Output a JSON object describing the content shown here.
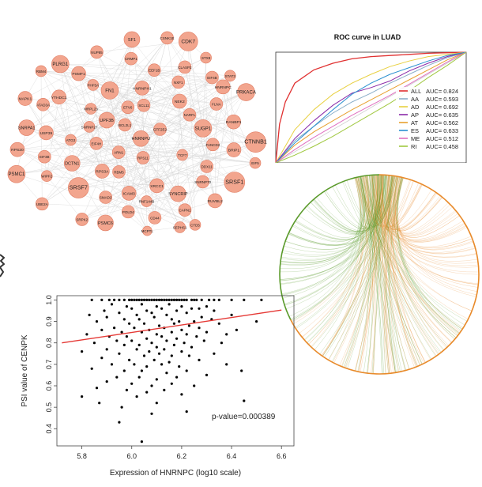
{
  "colors": {
    "node_fill": "#f2a58e",
    "node_stroke": "#e07a60",
    "network_edge": "#d8d8d8",
    "fit_line": "#e53935",
    "point": "#000000",
    "chord_green": "#5a9a2a",
    "chord_orange": "#e88a2a"
  },
  "network": {
    "nodes": [
      {
        "label": "MCPTL",
        "r": 6
      },
      {
        "label": "RBM4",
        "r": 7
      },
      {
        "label": "EIF5",
        "r": 7
      },
      {
        "label": "ARN1",
        "r": 8
      },
      {
        "label": "RANBP1",
        "r": 9
      },
      {
        "label": "EIF3B",
        "r": 8
      },
      {
        "label": "EEF1B",
        "r": 8
      },
      {
        "label": "RPS20",
        "r": 9
      },
      {
        "label": "SRSF7",
        "r": 13
      },
      {
        "label": "SRSF1",
        "r": 13
      },
      {
        "label": "NXF1",
        "r": 8
      },
      {
        "label": "CTD5",
        "r": 7
      },
      {
        "label": "SNRNP70",
        "r": 8
      },
      {
        "label": "EIF4H",
        "r": 8
      },
      {
        "label": "SCL11",
        "r": 8
      },
      {
        "label": "POLD4",
        "r": 8
      },
      {
        "label": "SNRPA1",
        "r": 10
      },
      {
        "label": "RBM5",
        "r": 8
      },
      {
        "label": "EIF4B",
        "r": 8
      },
      {
        "label": "UBE2A",
        "r": 8
      },
      {
        "label": "YTHDC1",
        "r": 9
      },
      {
        "label": "SYNCRIP",
        "r": 10
      },
      {
        "label": "HNRNPU",
        "r": 10
      },
      {
        "label": "NUP85",
        "r": 8
      },
      {
        "label": "SF1",
        "r": 10
      },
      {
        "label": "PLRG1",
        "r": 11
      },
      {
        "label": "USP39",
        "r": 9
      },
      {
        "label": "CSNK1E",
        "r": 8
      },
      {
        "label": "SRPK2",
        "r": 8
      },
      {
        "label": "XRCC1",
        "r": 9
      },
      {
        "label": "PSMC6",
        "r": 10
      },
      {
        "label": "HNRNPH1",
        "r": 9
      },
      {
        "label": "DCTN1",
        "r": 10
      },
      {
        "label": "RPS3A",
        "r": 9
      },
      {
        "label": "NEK2",
        "r": 9
      },
      {
        "label": "UPF3B",
        "r": 10
      },
      {
        "label": "MAPK1",
        "r": 9
      },
      {
        "label": "PSMC1",
        "r": 11
      },
      {
        "label": "CDK7",
        "r": 12
      },
      {
        "label": "GTF2E2",
        "r": 8
      },
      {
        "label": "SUGP1",
        "r": 11
      },
      {
        "label": "PRKACA",
        "r": 11
      },
      {
        "label": "PSMF1",
        "r": 9
      },
      {
        "label": "RUVBL2",
        "r": 9
      },
      {
        "label": "DDX11",
        "r": 8
      },
      {
        "label": "FN1",
        "r": 11
      },
      {
        "label": "ICAM3",
        "r": 9
      },
      {
        "label": "CTNNB1",
        "r": 13
      },
      {
        "label": "ATAD3A",
        "r": 8
      },
      {
        "label": "FANCD2",
        "r": 8
      },
      {
        "label": "BRIP1",
        "r": 9
      },
      {
        "label": "CAPN1",
        "r": 8
      },
      {
        "label": "FLNA",
        "r": 8
      },
      {
        "label": "SEPHS1",
        "r": 7
      },
      {
        "label": "RPS11",
        "r": 8
      },
      {
        "label": "CLASP2",
        "r": 8
      },
      {
        "label": "WIPF2",
        "r": 7
      },
      {
        "label": "ATG3",
        "r": 7
      },
      {
        "label": "SMAD2",
        "r": 8
      },
      {
        "label": "ETV6",
        "r": 8
      },
      {
        "label": "MRPL23",
        "r": 7
      },
      {
        "label": "RNF144B",
        "r": 7
      },
      {
        "label": "STX8",
        "r": 7
      },
      {
        "label": "CD44",
        "r": 8
      },
      {
        "label": "NARFL",
        "r": 8
      },
      {
        "label": "CRMP1",
        "r": 8
      },
      {
        "label": "TCF7",
        "r": 7
      },
      {
        "label": "BCL2L1",
        "r": 8
      },
      {
        "label": "STAT3",
        "r": 7
      },
      {
        "label": "HNRNPC",
        "r": 9
      },
      {
        "label": "SNRNP27",
        "r": 7
      },
      {
        "label": "PHF5A",
        "r": 7
      }
    ]
  },
  "roc": {
    "title": "ROC curve in LUAD",
    "legend": [
      {
        "label": "ALL",
        "auc": "AUC= 0.824",
        "color": "#e03030"
      },
      {
        "label": "AA",
        "auc": "AUC= 0.593",
        "color": "#8aaec8"
      },
      {
        "label": "AD",
        "auc": "AUC= 0.692",
        "color": "#e8d040"
      },
      {
        "label": "AP",
        "auc": "AUC= 0.635",
        "color": "#8a2aa8"
      },
      {
        "label": "AT",
        "auc": "AUC= 0.562",
        "color": "#e8a030"
      },
      {
        "label": "ES",
        "auc": "AUC= 0.633",
        "color": "#2a90d0"
      },
      {
        "label": "ME",
        "auc": "AUC= 0.512",
        "color": "#e070c0"
      },
      {
        "label": "RI",
        "auc": "AUC= 0.458",
        "color": "#a0c840"
      }
    ]
  },
  "scatter": {
    "xlabel": "Expression of HNRNPC (log10 scale)",
    "ylabel": "PSI value of CENPK",
    "annotation": "p-value=0.000389",
    "xticks": [
      "5.8",
      "6.0",
      "6.2",
      "6.4",
      "6.6"
    ],
    "yticks": [
      "0.4",
      "0.5",
      "0.6",
      "0.7",
      "0.8",
      "0.9",
      "1.0"
    ]
  },
  "chart_data": [
    {
      "type": "line",
      "title": "ROC curve in LUAD",
      "xlabel": "",
      "ylabel": "",
      "xlim": [
        0,
        1
      ],
      "ylim": [
        0,
        1
      ],
      "series": [
        {
          "name": "ALL",
          "auc": 0.824,
          "x": [
            0,
            0.02,
            0.05,
            0.1,
            0.2,
            0.3,
            0.4,
            0.5,
            0.6,
            0.7,
            0.8,
            0.9,
            1
          ],
          "y": [
            0,
            0.35,
            0.55,
            0.72,
            0.84,
            0.9,
            0.94,
            0.96,
            0.97,
            0.98,
            0.99,
            0.995,
            1
          ]
        },
        {
          "name": "AA",
          "auc": 0.593,
          "x": [
            0,
            0.1,
            0.2,
            0.3,
            0.4,
            0.5,
            0.6,
            0.7,
            0.8,
            0.9,
            1
          ],
          "y": [
            0,
            0.2,
            0.33,
            0.45,
            0.55,
            0.63,
            0.72,
            0.8,
            0.88,
            0.95,
            1
          ]
        },
        {
          "name": "AD",
          "auc": 0.692,
          "x": [
            0,
            0.1,
            0.2,
            0.3,
            0.4,
            0.5,
            0.6,
            0.7,
            0.8,
            0.9,
            1
          ],
          "y": [
            0,
            0.3,
            0.48,
            0.62,
            0.72,
            0.8,
            0.87,
            0.92,
            0.96,
            0.98,
            1
          ]
        },
        {
          "name": "AP",
          "auc": 0.635,
          "x": [
            0,
            0.1,
            0.2,
            0.3,
            0.4,
            0.5,
            0.6,
            0.7,
            0.8,
            0.9,
            1
          ],
          "y": [
            0,
            0.22,
            0.38,
            0.52,
            0.63,
            0.68,
            0.74,
            0.83,
            0.9,
            0.96,
            1
          ]
        },
        {
          "name": "AT",
          "auc": 0.562,
          "x": [
            0,
            0.1,
            0.2,
            0.3,
            0.4,
            0.5,
            0.6,
            0.7,
            0.8,
            0.9,
            1
          ],
          "y": [
            0,
            0.16,
            0.28,
            0.38,
            0.48,
            0.57,
            0.66,
            0.75,
            0.84,
            0.93,
            1
          ]
        },
        {
          "name": "ES",
          "auc": 0.633,
          "x": [
            0,
            0.1,
            0.2,
            0.3,
            0.4,
            0.5,
            0.6,
            0.7,
            0.8,
            0.9,
            1
          ],
          "y": [
            0,
            0.18,
            0.33,
            0.48,
            0.62,
            0.72,
            0.8,
            0.86,
            0.92,
            0.97,
            1
          ]
        },
        {
          "name": "ME",
          "auc": 0.512,
          "x": [
            0,
            0.1,
            0.2,
            0.3,
            0.4,
            0.5,
            0.6,
            0.7,
            0.8,
            0.9,
            1
          ],
          "y": [
            0,
            0.12,
            0.23,
            0.33,
            0.43,
            0.52,
            0.61,
            0.71,
            0.81,
            0.91,
            1
          ]
        },
        {
          "name": "RI",
          "auc": 0.458,
          "x": [
            0,
            0.1,
            0.2,
            0.3,
            0.4,
            0.5,
            0.6,
            0.7,
            0.8,
            0.9,
            1
          ],
          "y": [
            0,
            0.07,
            0.15,
            0.24,
            0.34,
            0.44,
            0.54,
            0.65,
            0.77,
            0.88,
            1
          ]
        }
      ]
    },
    {
      "type": "scatter",
      "title": "",
      "xlabel": "Expression of HNRNPC (log10 scale)",
      "ylabel": "PSI value of CENPK",
      "xlim": [
        5.7,
        6.65
      ],
      "ylim": [
        0.32,
        1.02
      ],
      "annotation": "p-value=0.000389",
      "fit_line": {
        "x": [
          5.72,
          6.6
        ],
        "y": [
          0.8,
          0.953
        ]
      },
      "points": [
        [
          5.84,
          1.0
        ],
        [
          5.88,
          1.0
        ],
        [
          5.91,
          1.0
        ],
        [
          5.93,
          1.0
        ],
        [
          5.95,
          1.0
        ],
        [
          5.97,
          1.0
        ],
        [
          5.99,
          1.0
        ],
        [
          6.01,
          1.0
        ],
        [
          6.02,
          1.0
        ],
        [
          6.03,
          1.0
        ],
        [
          6.05,
          1.0
        ],
        [
          6.06,
          1.0
        ],
        [
          6.07,
          1.0
        ],
        [
          6.09,
          1.0
        ],
        [
          6.1,
          1.0
        ],
        [
          6.12,
          1.0
        ],
        [
          6.13,
          1.0
        ],
        [
          6.14,
          1.0
        ],
        [
          6.16,
          1.0
        ],
        [
          6.17,
          1.0
        ],
        [
          6.19,
          1.0
        ],
        [
          6.2,
          1.0
        ],
        [
          6.22,
          1.0
        ],
        [
          6.24,
          1.0
        ],
        [
          6.26,
          1.0
        ],
        [
          6.28,
          1.0
        ],
        [
          6.31,
          1.0
        ],
        [
          6.33,
          1.0
        ],
        [
          6.35,
          1.0
        ],
        [
          6.4,
          1.0
        ],
        [
          6.45,
          1.0
        ],
        [
          6.52,
          1.0
        ],
        [
          6.0,
          1.0
        ],
        [
          6.04,
          1.0
        ],
        [
          6.08,
          1.0
        ],
        [
          6.11,
          1.0
        ],
        [
          6.15,
          1.0
        ],
        [
          6.18,
          1.0
        ],
        [
          6.21,
          1.0
        ],
        [
          6.25,
          1.0
        ],
        [
          5.92,
          0.98
        ],
        [
          5.98,
          0.97
        ],
        [
          6.04,
          0.98
        ],
        [
          6.1,
          0.97
        ],
        [
          6.15,
          0.98
        ],
        [
          6.2,
          0.97
        ],
        [
          6.24,
          0.96
        ],
        [
          6.3,
          0.97
        ],
        [
          6.0,
          0.96
        ],
        [
          6.06,
          0.95
        ],
        [
          6.12,
          0.96
        ],
        [
          6.18,
          0.95
        ],
        [
          5.95,
          0.94
        ],
        [
          6.02,
          0.93
        ],
        [
          6.08,
          0.94
        ],
        [
          6.14,
          0.93
        ],
        [
          6.22,
          0.94
        ],
        [
          6.28,
          0.92
        ],
        [
          5.9,
          0.92
        ],
        [
          5.97,
          0.91
        ],
        [
          6.03,
          0.91
        ],
        [
          6.09,
          0.92
        ],
        [
          6.16,
          0.91
        ],
        [
          6.19,
          0.9
        ],
        [
          6.25,
          0.9
        ],
        [
          6.32,
          0.91
        ],
        [
          5.86,
          0.9
        ],
        [
          5.99,
          0.89
        ],
        [
          6.05,
          0.89
        ],
        [
          6.11,
          0.88
        ],
        [
          6.17,
          0.89
        ],
        [
          6.23,
          0.88
        ],
        [
          6.35,
          0.89
        ],
        [
          5.93,
          0.87
        ],
        [
          6.01,
          0.87
        ],
        [
          6.07,
          0.86
        ],
        [
          6.13,
          0.87
        ],
        [
          6.2,
          0.86
        ],
        [
          6.27,
          0.87
        ],
        [
          5.88,
          0.86
        ],
        [
          5.96,
          0.85
        ],
        [
          6.04,
          0.85
        ],
        [
          6.1,
          0.84
        ],
        [
          6.16,
          0.85
        ],
        [
          6.22,
          0.84
        ],
        [
          6.3,
          0.85
        ],
        [
          5.82,
          0.84
        ],
        [
          5.91,
          0.83
        ],
        [
          5.98,
          0.83
        ],
        [
          6.06,
          0.82
        ],
        [
          6.12,
          0.83
        ],
        [
          6.18,
          0.82
        ],
        [
          6.26,
          0.83
        ],
        [
          6.38,
          0.84
        ],
        [
          5.94,
          0.81
        ],
        [
          6.0,
          0.81
        ],
        [
          6.08,
          0.8
        ],
        [
          6.14,
          0.81
        ],
        [
          6.21,
          0.8
        ],
        [
          6.29,
          0.81
        ],
        [
          5.85,
          0.8
        ],
        [
          5.97,
          0.79
        ],
        [
          6.03,
          0.79
        ],
        [
          6.1,
          0.78
        ],
        [
          6.17,
          0.79
        ],
        [
          6.24,
          0.78
        ],
        [
          5.9,
          0.77
        ],
        [
          6.02,
          0.77
        ],
        [
          6.07,
          0.76
        ],
        [
          6.13,
          0.77
        ],
        [
          6.2,
          0.76
        ],
        [
          5.8,
          0.76
        ],
        [
          5.95,
          0.75
        ],
        [
          6.05,
          0.74
        ],
        [
          6.11,
          0.75
        ],
        [
          6.16,
          0.74
        ],
        [
          6.23,
          0.74
        ],
        [
          5.88,
          0.73
        ],
        [
          5.99,
          0.72
        ],
        [
          6.09,
          0.72
        ],
        [
          6.15,
          0.71
        ],
        [
          6.27,
          0.72
        ],
        [
          5.92,
          0.7
        ],
        [
          6.01,
          0.7
        ],
        [
          6.06,
          0.69
        ],
        [
          6.12,
          0.7
        ],
        [
          6.19,
          0.69
        ],
        [
          5.84,
          0.68
        ],
        [
          5.97,
          0.67
        ],
        [
          6.04,
          0.67
        ],
        [
          6.14,
          0.66
        ],
        [
          6.22,
          0.67
        ],
        [
          6.38,
          0.7
        ],
        [
          6.44,
          0.67
        ],
        [
          5.94,
          0.64
        ],
        [
          6.03,
          0.64
        ],
        [
          6.1,
          0.63
        ],
        [
          6.18,
          0.64
        ],
        [
          5.9,
          0.62
        ],
        [
          6.0,
          0.61
        ],
        [
          6.08,
          0.6
        ],
        [
          6.16,
          0.61
        ],
        [
          5.86,
          0.59
        ],
        [
          5.98,
          0.58
        ],
        [
          6.06,
          0.57
        ],
        [
          6.13,
          0.58
        ],
        [
          5.8,
          0.55
        ],
        [
          6.02,
          0.55
        ],
        [
          6.2,
          0.56
        ],
        [
          6.25,
          0.6
        ],
        [
          5.87,
          0.52
        ],
        [
          5.96,
          0.5
        ],
        [
          6.1,
          0.52
        ],
        [
          6.45,
          0.53
        ],
        [
          5.95,
          0.43
        ],
        [
          6.08,
          0.47
        ],
        [
          6.22,
          0.48
        ],
        [
          6.04,
          0.34
        ],
        [
          6.3,
          0.65
        ],
        [
          6.33,
          0.75
        ],
        [
          6.36,
          0.8
        ],
        [
          6.42,
          0.86
        ],
        [
          6.5,
          0.9
        ],
        [
          5.89,
          0.95
        ],
        [
          5.83,
          0.93
        ],
        [
          6.27,
          0.96
        ],
        [
          6.33,
          0.95
        ],
        [
          6.4,
          0.93
        ]
      ]
    }
  ]
}
